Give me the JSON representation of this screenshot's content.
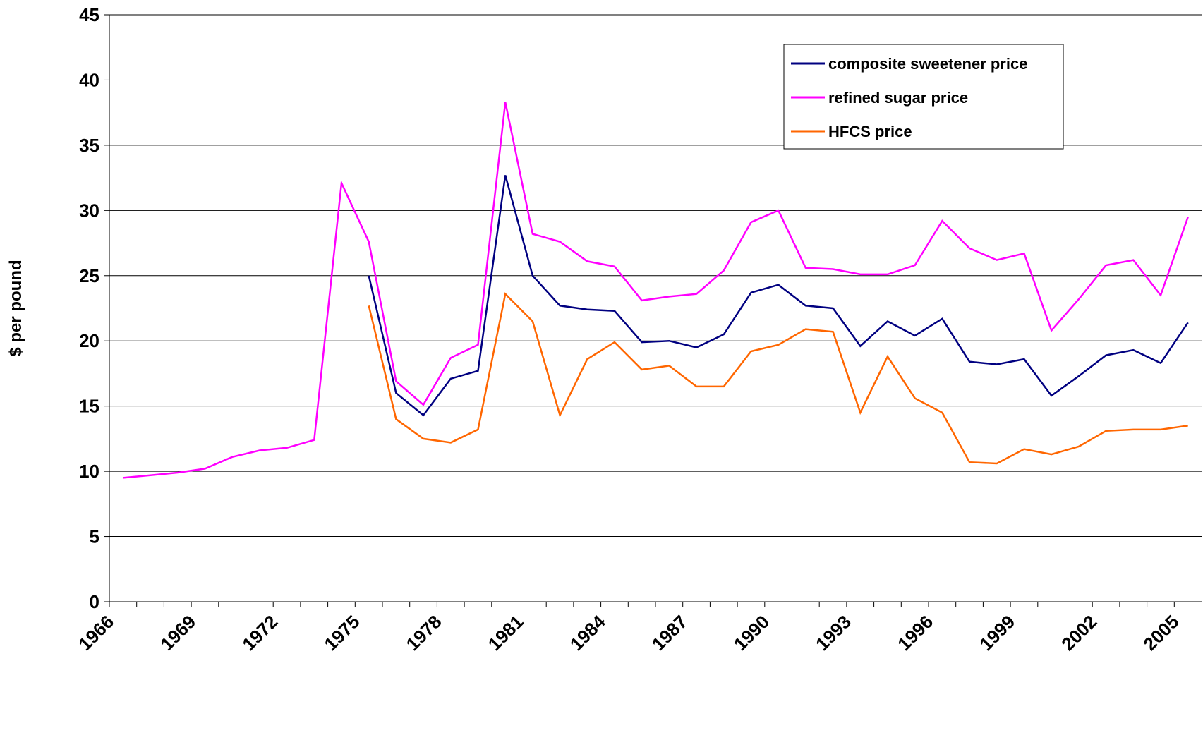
{
  "chart_data": {
    "type": "line",
    "y_label": "$ per pound",
    "categories": [
      "1966",
      null,
      null,
      "1969",
      null,
      null,
      "1972",
      null,
      null,
      "1975",
      null,
      null,
      "1978",
      null,
      null,
      "1981",
      null,
      null,
      "1984",
      null,
      null,
      "1987",
      null,
      null,
      "1990",
      null,
      null,
      "1993",
      null,
      null,
      "1996",
      null,
      null,
      "1999",
      null,
      null,
      "2002",
      null,
      null,
      "2005"
    ],
    "series": [
      {
        "name": "composite sweetener price",
        "color": "#000080",
        "values": [
          null,
          null,
          null,
          null,
          null,
          null,
          null,
          null,
          null,
          25.0,
          16.0,
          14.3,
          17.1,
          17.7,
          32.7,
          25.0,
          22.7,
          22.4,
          22.3,
          19.9,
          20.0,
          19.5,
          20.5,
          23.7,
          24.3,
          22.7,
          22.5,
          19.6,
          21.5,
          20.4,
          21.7,
          18.4,
          18.2,
          18.6,
          15.8,
          17.3,
          18.9,
          19.3,
          18.3,
          21.4
        ]
      },
      {
        "name": "refined sugar price",
        "color": "#ff00ff",
        "values": [
          9.5,
          9.7,
          9.9,
          10.2,
          11.1,
          11.6,
          11.8,
          12.4,
          32.1,
          27.6,
          16.9,
          15.1,
          18.7,
          19.7,
          38.3,
          28.2,
          27.6,
          26.1,
          25.7,
          23.1,
          23.4,
          23.6,
          25.4,
          29.1,
          30.0,
          25.6,
          25.5,
          25.1,
          25.1,
          25.8,
          29.2,
          27.1,
          26.2,
          26.7,
          20.8,
          23.2,
          25.8,
          26.2,
          23.5,
          29.5
        ]
      },
      {
        "name": "HFCS price",
        "color": "#ff6600",
        "values": [
          null,
          null,
          null,
          null,
          null,
          null,
          null,
          null,
          null,
          22.7,
          14.0,
          12.5,
          12.2,
          13.2,
          23.6,
          21.5,
          14.3,
          18.6,
          19.9,
          17.8,
          18.1,
          16.5,
          16.5,
          19.2,
          19.7,
          20.9,
          20.7,
          14.5,
          18.8,
          15.6,
          14.5,
          10.7,
          10.6,
          11.7,
          11.3,
          11.9,
          13.1,
          13.2,
          13.2,
          13.5
        ]
      }
    ],
    "ylim": [
      0,
      45
    ],
    "yticks": [
      0,
      5,
      10,
      15,
      20,
      25,
      30,
      35,
      40,
      45
    ],
    "grid": true,
    "legend": "upper right"
  }
}
